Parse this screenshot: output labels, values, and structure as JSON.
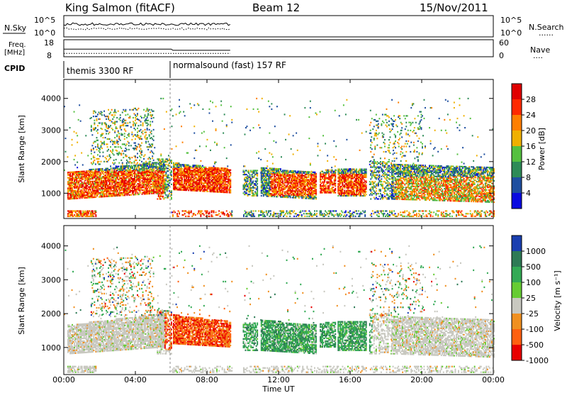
{
  "header": {
    "station": "King Salmon (fitACF)",
    "beam": "Beam 12",
    "date": "15/Nov/2011"
  },
  "noise_panel": {
    "left_label": "N.Sky",
    "right_label": "N.Search",
    "right_legend_line": "......",
    "left_ticks": [
      "10^5",
      "10^0"
    ],
    "right_ticks": [
      "10^5",
      "10^0"
    ]
  },
  "freq_panel": {
    "left_label_top": "Freq.",
    "left_label_bottom": "[MHz]",
    "right_label": "Nave",
    "right_legend_line": "....",
    "left_ticks": [
      "18",
      "8"
    ],
    "right_ticks": [
      "60",
      "0"
    ]
  },
  "cpid": {
    "label": "CPID",
    "modes": [
      "themis 3300 RF",
      "normalsound (fast) 157 RF"
    ]
  },
  "chart_data": [
    {
      "type": "heatmap",
      "panel": "power",
      "ylabel": "Slant Range [km]",
      "xlabel": "",
      "y_ticks": [
        "1000",
        "2000",
        "3000",
        "4000"
      ],
      "ylim": [
        200,
        4600
      ],
      "colorbar_label": "Power [dB]",
      "colorbar_ticks": [
        "4",
        "8",
        "12",
        "16",
        "20",
        "24",
        "28"
      ],
      "colorbar_range": [
        0,
        32
      ],
      "colors": [
        "#0a0ae0",
        "#1f4fa0",
        "#2e8b57",
        "#55c040",
        "#f0b000",
        "#ff7f00",
        "#ff2a00",
        "#e00000"
      ]
    },
    {
      "type": "heatmap",
      "panel": "velocity",
      "ylabel": "Slant Range [km]",
      "xlabel": "Time UT",
      "x_ticks": [
        "00:00",
        "04:00",
        "08:00",
        "12:00",
        "16:00",
        "20:00",
        "00:00"
      ],
      "y_ticks": [
        "1000",
        "2000",
        "3000",
        "4000"
      ],
      "ylim": [
        200,
        4600
      ],
      "colorbar_label": "Velocity [m s⁻¹]",
      "colorbar_ticks": [
        "1000",
        "500",
        "100",
        "25",
        "-25",
        "-100",
        "-500",
        "-1000"
      ],
      "colors": [
        "#1a3fb0",
        "#2e7a55",
        "#33aa55",
        "#66cc33",
        "#c8c8c0",
        "#f09020",
        "#ff6010",
        "#e80000"
      ]
    }
  ]
}
